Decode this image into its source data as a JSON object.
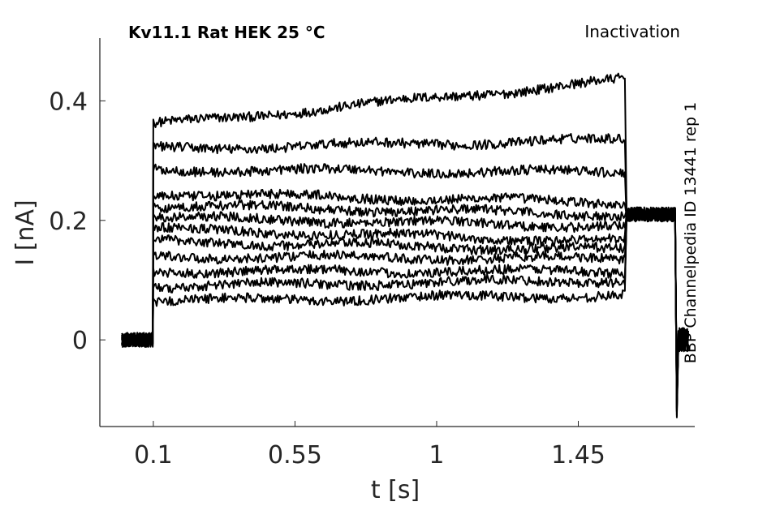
{
  "chart_data": {
    "type": "line",
    "title": "Kv11.1  Rat  HEK  25 °C",
    "subtitle": "Inactivation",
    "side_note": "BBP Channelpedia ID 13441 rep 1",
    "xlabel": "t [s]",
    "ylabel": "I [nA]",
    "xlim": [
      -0.07,
      1.82
    ],
    "ylim": [
      -0.145,
      0.505
    ],
    "xticks": [
      0.1,
      0.55,
      1,
      1.45
    ],
    "xtick_labels": [
      "0.1",
      "0.55",
      "1",
      "1.45"
    ],
    "yticks": [
      0,
      0.2,
      0.4
    ],
    "ytick_labels": [
      "0",
      "0.2",
      "0.4"
    ],
    "grid": false,
    "legend": "none",
    "color": "#000000",
    "protocol": {
      "baseline_start": 0.0,
      "step_on": 0.1,
      "step_off": 1.6,
      "tail_end": 1.76,
      "end": 1.8
    },
    "series": [
      {
        "step_start": 0.36,
        "step_end": 0.435,
        "tail": 0.21
      },
      {
        "step_start": 0.32,
        "step_end": 0.335,
        "tail": 0.21
      },
      {
        "step_start": 0.285,
        "step_end": 0.28,
        "tail": 0.21
      },
      {
        "step_start": 0.245,
        "step_end": 0.23,
        "tail": 0.21
      },
      {
        "step_start": 0.225,
        "step_end": 0.21,
        "tail": 0.21
      },
      {
        "step_start": 0.205,
        "step_end": 0.19,
        "tail": 0.21
      },
      {
        "step_start": 0.185,
        "step_end": 0.165,
        "tail": 0.21
      },
      {
        "step_start": 0.165,
        "step_end": 0.15,
        "tail": 0.21
      },
      {
        "step_start": 0.14,
        "step_end": 0.135,
        "tail": 0.21
      },
      {
        "step_start": 0.115,
        "step_end": 0.115,
        "tail": 0.21
      },
      {
        "step_start": 0.09,
        "step_end": 0.1,
        "tail": 0.21
      },
      {
        "step_start": 0.065,
        "step_end": 0.075,
        "tail": 0.21
      }
    ]
  }
}
